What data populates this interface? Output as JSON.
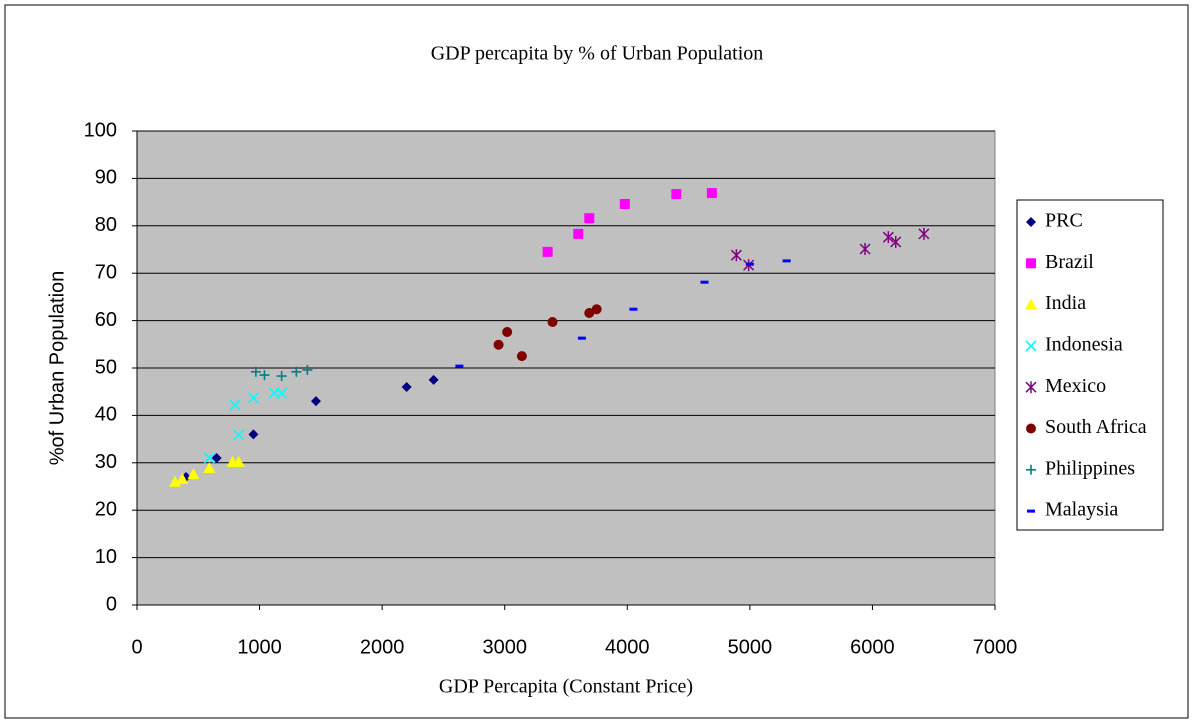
{
  "chart_data": {
    "type": "scatter",
    "title": "GDP percapita by % of Urban Population",
    "x_label": "GDP Percapita (Constant Price)",
    "y_label": "%of Urban Population",
    "xlim": [
      0,
      7000
    ],
    "xticks": [
      0,
      1000,
      2000,
      3000,
      4000,
      5000,
      6000,
      7000
    ],
    "ylim": [
      0,
      100
    ],
    "yticks": [
      0,
      10,
      20,
      30,
      40,
      50,
      60,
      70,
      80,
      90,
      100
    ],
    "grid": true,
    "legend": "right",
    "plot_background": "#c0c0c0",
    "series": [
      {
        "name": "PRC",
        "color": "#000080",
        "marker": "diamond",
        "x": [
          400,
          650,
          950,
          1460,
          2200,
          2420
        ],
        "y": [
          27,
          31,
          36,
          43,
          46,
          47.5
        ]
      },
      {
        "name": "Brazil",
        "color": "#ff00ff",
        "marker": "square",
        "x": [
          3350,
          3600,
          3690,
          3980,
          4400,
          4690
        ],
        "y": [
          74.5,
          78.3,
          81.6,
          84.6,
          86.7,
          86.9
        ]
      },
      {
        "name": "India",
        "color": "#ffff00",
        "marker": "triangle",
        "x": [
          310,
          370,
          460,
          590,
          780,
          830
        ],
        "y": [
          26,
          26.6,
          27.6,
          28.9,
          30.2,
          30.2
        ]
      },
      {
        "name": "Indonesia",
        "color": "#00ffff",
        "marker": "x",
        "x": [
          590,
          830,
          800,
          950,
          1120,
          1180
        ],
        "y": [
          31,
          35.9,
          42.2,
          43.7,
          44.7,
          44.7
        ]
      },
      {
        "name": "Mexico",
        "color": "#800080",
        "marker": "star",
        "x": [
          4890,
          4990,
          5940,
          6130,
          6190,
          6420
        ],
        "y": [
          73.8,
          71.7,
          75.1,
          77.6,
          76.6,
          78.3
        ]
      },
      {
        "name": "South Africa",
        "color": "#800000",
        "marker": "circle",
        "x": [
          2950,
          3020,
          3140,
          3390,
          3690,
          3750
        ],
        "y": [
          54.9,
          57.6,
          52.5,
          59.7,
          61.6,
          62.4
        ]
      },
      {
        "name": "Philippines",
        "color": "#008080",
        "marker": "plus",
        "x": [
          970,
          1040,
          1180,
          1300,
          1390
        ],
        "y": [
          49.2,
          48.5,
          48.3,
          49.2,
          49.6
        ]
      },
      {
        "name": "Malaysia",
        "color": "#0000ff",
        "marker": "dash",
        "x": [
          2630,
          3630,
          4050,
          4630,
          5000,
          5300
        ],
        "y": [
          50.4,
          56.3,
          62.4,
          68.1,
          71.9,
          72.6
        ]
      }
    ]
  }
}
